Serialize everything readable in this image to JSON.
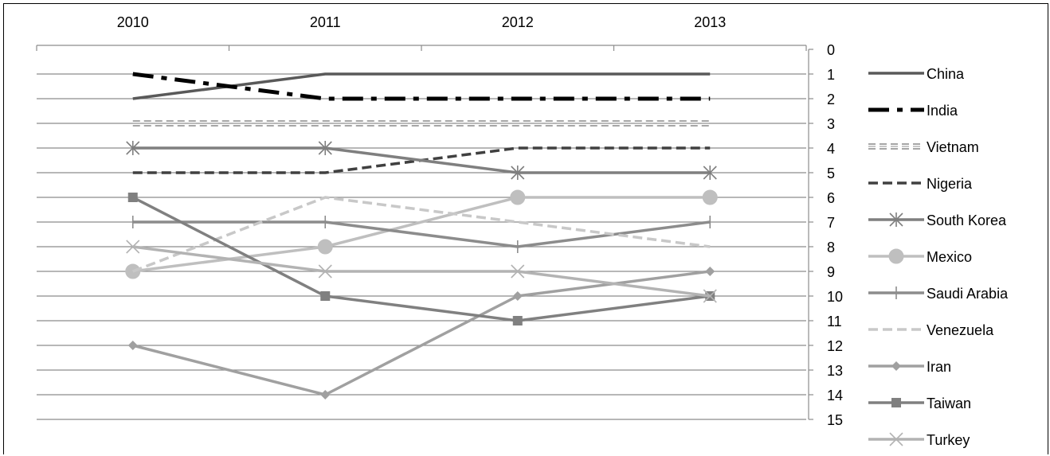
{
  "chart_data": {
    "type": "line",
    "title": "",
    "xlabel": "",
    "ylabel": "",
    "x": [
      "2010",
      "2011",
      "2012",
      "2013"
    ],
    "y_ticks": [
      "0",
      "1",
      "2",
      "3",
      "4",
      "5",
      "6",
      "7",
      "8",
      "9",
      "10",
      "11",
      "12",
      "13",
      "14",
      "15"
    ],
    "ylim": [
      0,
      15
    ],
    "y_inverted": true,
    "x_axis_position": "top",
    "y_axis_position": "right",
    "grid": true,
    "legend_position": "right",
    "series": [
      {
        "name": "China",
        "values": [
          2,
          1,
          1,
          1
        ],
        "color": "#595959",
        "dash": "solid",
        "marker": "none"
      },
      {
        "name": "India",
        "values": [
          1,
          2,
          2,
          2
        ],
        "color": "#000000",
        "dash": "dashdot",
        "marker": "none"
      },
      {
        "name": "Vietnam",
        "values": [
          3,
          3,
          3,
          3
        ],
        "color": "#a6a6a6",
        "dash": "double",
        "marker": "none"
      },
      {
        "name": "Nigeria",
        "values": [
          5,
          5,
          4,
          4
        ],
        "color": "#404040",
        "dash": "dash",
        "marker": "none"
      },
      {
        "name": "South Korea",
        "values": [
          4,
          4,
          5,
          5
        ],
        "color": "#7f7f7f",
        "dash": "solid",
        "marker": "star"
      },
      {
        "name": "Mexico",
        "values": [
          9,
          8,
          6,
          6
        ],
        "color": "#bfbfbf",
        "dash": "solid",
        "marker": "circle"
      },
      {
        "name": "Saudi Arabia",
        "values": [
          7,
          7,
          8,
          7
        ],
        "color": "#8c8c8c",
        "dash": "solid",
        "marker": "plus"
      },
      {
        "name": "Venezuela",
        "values": [
          9,
          6,
          7,
          8
        ],
        "color": "#c8c8c8",
        "dash": "dash",
        "marker": "none"
      },
      {
        "name": "Iran",
        "values": [
          12,
          14,
          10,
          9
        ],
        "color": "#a0a0a0",
        "dash": "solid",
        "marker": "diamond"
      },
      {
        "name": "Taiwan",
        "values": [
          6,
          10,
          11,
          10
        ],
        "color": "#808080",
        "dash": "solid",
        "marker": "square"
      },
      {
        "name": "Turkey",
        "values": [
          8,
          9,
          9,
          10
        ],
        "color": "#b3b3b3",
        "dash": "solid",
        "marker": "x"
      }
    ]
  }
}
